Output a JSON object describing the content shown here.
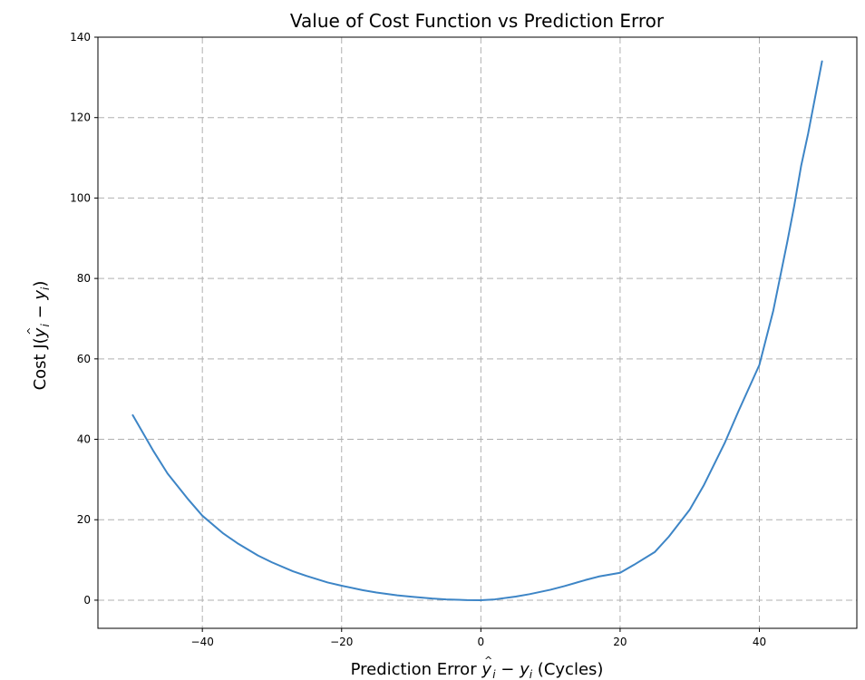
{
  "chart_data": {
    "type": "line",
    "title": "Value of Cost Function vs Prediction Error",
    "xlabel": {
      "prefix": "Prediction Error ",
      "math_a": "y",
      "hat": "^",
      "sub_a": "i",
      "minus": " − ",
      "math_b": "y",
      "sub_b": "i",
      "suffix": " (Cycles)"
    },
    "ylabel": {
      "prefix": "Cost J(",
      "math_a": "y",
      "hat": "^",
      "sub_a": "i",
      "minus": " − ",
      "math_b": "y",
      "sub_b": "i",
      "suffix": ")"
    },
    "xlim": [
      -55,
      54
    ],
    "ylim": [
      -7,
      140
    ],
    "xticks": [
      -40,
      -20,
      0,
      20,
      40
    ],
    "yticks": [
      0,
      20,
      40,
      60,
      80,
      100,
      120,
      140
    ],
    "xtick_labels": [
      "−40",
      "−20",
      "0",
      "20",
      "40"
    ],
    "ytick_labels": [
      "0",
      "20",
      "40",
      "60",
      "80",
      "100",
      "120",
      "140"
    ],
    "grid": true,
    "series": [
      {
        "color": "#3d85c6",
        "x": [
          -50,
          -47,
          -45,
          -42,
          -40,
          -37,
          -35,
          -32,
          -30,
          -27,
          -25,
          -22,
          -20,
          -17,
          -15,
          -12,
          -10,
          -7,
          -5,
          -2,
          0,
          2,
          5,
          7,
          10,
          12,
          15,
          17,
          20,
          22,
          25,
          27,
          30,
          32,
          35,
          37,
          40,
          42,
          44,
          45,
          46,
          47,
          48,
          49
        ],
        "y": [
          46,
          37,
          31.5,
          25,
          21,
          16.6,
          14.2,
          11.1,
          9.4,
          7.2,
          6.0,
          4.4,
          3.6,
          2.5,
          1.9,
          1.2,
          0.85,
          0.4,
          0.2,
          0.03,
          0,
          0.2,
          0.9,
          1.5,
          2.6,
          3.5,
          5.0,
          5.9,
          6.8,
          8.8,
          12.0,
          15.8,
          22.5,
          28.5,
          39,
          47,
          58.5,
          72,
          89,
          98,
          108,
          116,
          125,
          134
        ]
      }
    ]
  }
}
